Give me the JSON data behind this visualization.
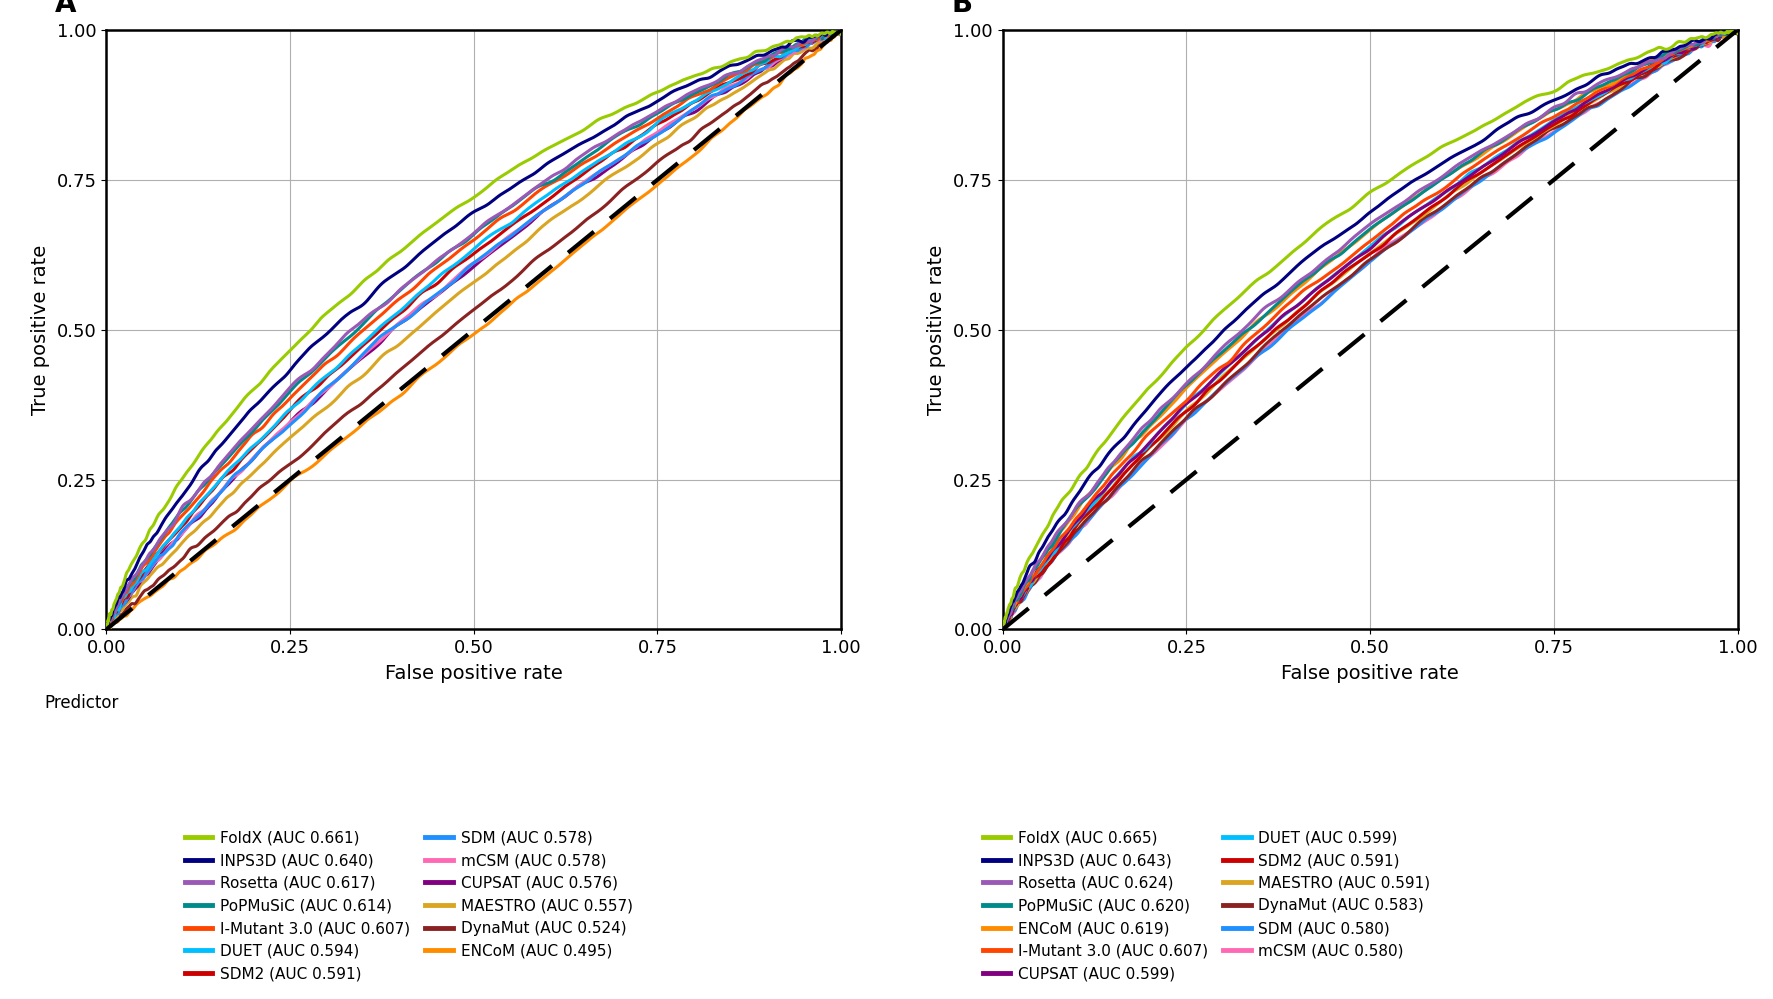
{
  "panel_A": {
    "label": "A",
    "predictors": [
      {
        "name": "FoldX",
        "auc": 0.661,
        "color": "#99CC00",
        "spread": 1.8
      },
      {
        "name": "INPS3D",
        "auc": 0.64,
        "color": "#000080",
        "spread": 1.5
      },
      {
        "name": "Rosetta",
        "auc": 0.617,
        "color": "#9B59B6",
        "spread": 1.3
      },
      {
        "name": "PoPMuSiC",
        "auc": 0.614,
        "color": "#008B8B",
        "spread": 1.25
      },
      {
        "name": "I-Mutant 3.0",
        "auc": 0.607,
        "color": "#FF4500",
        "spread": 1.2
      },
      {
        "name": "DUET",
        "auc": 0.594,
        "color": "#00BFFF",
        "spread": 1.1
      },
      {
        "name": "SDM2",
        "auc": 0.591,
        "color": "#CC0000",
        "spread": 1.08
      },
      {
        "name": "SDM",
        "auc": 0.578,
        "color": "#1E90FF",
        "spread": 1.0
      },
      {
        "name": "mCSM",
        "auc": 0.578,
        "color": "#FF69B4",
        "spread": 0.99
      },
      {
        "name": "CUPSAT",
        "auc": 0.576,
        "color": "#800080",
        "spread": 0.97
      },
      {
        "name": "MAESTRO",
        "auc": 0.557,
        "color": "#DAA520",
        "spread": 0.85
      },
      {
        "name": "DynaMut",
        "auc": 0.524,
        "color": "#8B2222",
        "spread": 0.65
      },
      {
        "name": "ENCoM",
        "auc": 0.495,
        "color": "#FF8C00",
        "spread": 0.45
      }
    ]
  },
  "panel_B": {
    "label": "B",
    "predictors": [
      {
        "name": "FoldX",
        "auc": 0.665,
        "color": "#99CC00",
        "spread": 1.8
      },
      {
        "name": "INPS3D",
        "auc": 0.643,
        "color": "#000080",
        "spread": 1.5
      },
      {
        "name": "Rosetta",
        "auc": 0.624,
        "color": "#9B59B6",
        "spread": 1.3
      },
      {
        "name": "PoPMuSiC",
        "auc": 0.62,
        "color": "#008B8B",
        "spread": 1.25
      },
      {
        "name": "ENCoM",
        "auc": 0.619,
        "color": "#FF8C00",
        "spread": 1.22
      },
      {
        "name": "I-Mutant 3.0",
        "auc": 0.607,
        "color": "#FF4500",
        "spread": 1.15
      },
      {
        "name": "CUPSAT",
        "auc": 0.599,
        "color": "#800080",
        "spread": 1.08
      },
      {
        "name": "DUET",
        "auc": 0.599,
        "color": "#00BFFF",
        "spread": 1.08
      },
      {
        "name": "SDM2",
        "auc": 0.591,
        "color": "#CC0000",
        "spread": 1.0
      },
      {
        "name": "MAESTRO",
        "auc": 0.591,
        "color": "#DAA520",
        "spread": 1.0
      },
      {
        "name": "DynaMut",
        "auc": 0.583,
        "color": "#8B2222",
        "spread": 0.95
      },
      {
        "name": "SDM",
        "auc": 0.58,
        "color": "#1E90FF",
        "spread": 0.93
      },
      {
        "name": "mCSM",
        "auc": 0.58,
        "color": "#FF69B4",
        "spread": 0.93
      }
    ]
  },
  "xlabel": "False positive rate",
  "ylabel": "True positive rate",
  "xlim": [
    0.0,
    1.0
  ],
  "ylim": [
    0.0,
    1.0
  ],
  "xticks": [
    0.0,
    0.25,
    0.5,
    0.75,
    1.0
  ],
  "yticks": [
    0.0,
    0.25,
    0.5,
    0.75,
    1.0
  ],
  "background_color": "#ffffff",
  "grid_color": "#b0b0b0",
  "linewidth": 2.2,
  "predictor_label": "Predictor"
}
